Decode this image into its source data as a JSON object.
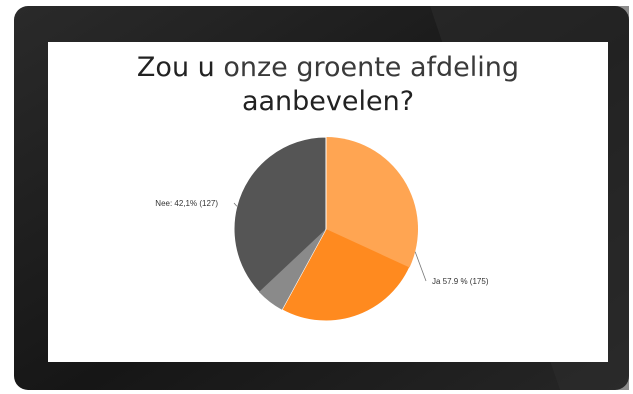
{
  "chart_data": {
    "type": "pie",
    "title_parts": {
      "line1_a": "Zou u ",
      "line1_b": "onze groente afdeling",
      "line2": "aanbevelen?"
    },
    "slices": [
      {
        "label_text": "Ja 57.9 % (175)",
        "value": 175,
        "percent": 57.9,
        "color": "#ff8a1f",
        "color_light": "#ffa552"
      },
      {
        "label_text": "Nee: 42,1% (127)",
        "value": 127,
        "percent": 42.1,
        "color": "#555555",
        "color_light": "#8a8a8a"
      }
    ]
  },
  "colors": {
    "bezel": "#1b1b1b",
    "screen": "#ffffff",
    "backdrop": "#ffffff"
  }
}
